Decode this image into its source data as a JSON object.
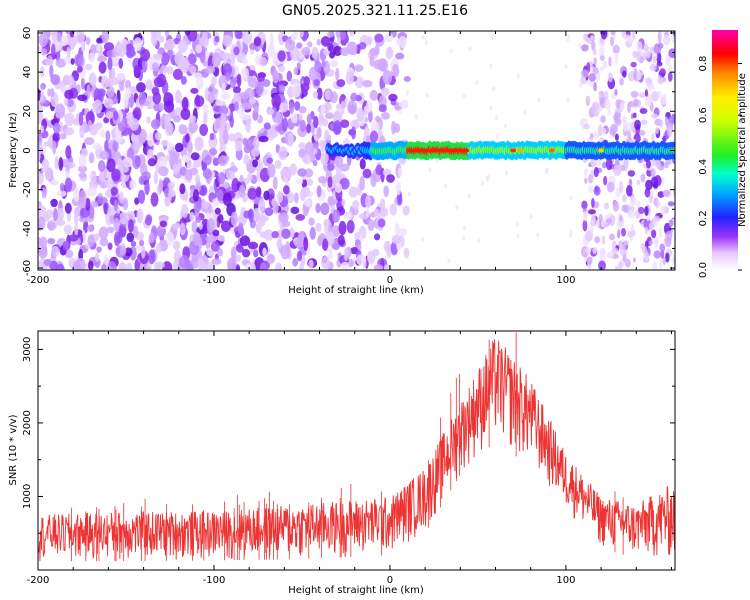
{
  "figure_title": "GN05.2025.321.11.25.E16",
  "chart_data": [
    {
      "type": "heatmap",
      "title": "GN05.2025.321.11.25.E16",
      "xlabel": "Height of straight line (km)",
      "ylabel": "Frequency (Hz)",
      "xlim": [
        -200,
        162
      ],
      "ylim": [
        -61,
        61
      ],
      "xticks": [
        -200,
        -100,
        0,
        100
      ],
      "yticks": [
        -60,
        -40,
        -20,
        0,
        20,
        40,
        60
      ],
      "features": {
        "noise_region_km": [
          -200,
          10
        ],
        "noise_region_right_km": [
          110,
          162
        ],
        "signal_band_hz": [
          -4,
          4
        ],
        "signal_start_km": -35,
        "peak_amplitude_km": [
          10,
          45
        ]
      },
      "colorbar": {
        "label": "Normalized spectral amplitude",
        "range": [
          0.0,
          0.93
        ],
        "ticks": [
          0.0,
          0.2,
          0.4,
          0.6,
          0.8
        ],
        "colormap": "rainbow"
      }
    },
    {
      "type": "line",
      "xlabel": "Height of straight line (km)",
      "ylabel": "SNR (10 * v/v)",
      "xlim": [
        -200,
        162
      ],
      "ylim": [
        0,
        3250
      ],
      "xticks": [
        -200,
        -100,
        0,
        100
      ],
      "yticks": [
        1000,
        2000,
        3000
      ],
      "series": [
        {
          "name": "SNR",
          "color": "#ee3333",
          "x": [
            -200,
            -150,
            -100,
            -50,
            0,
            20,
            40,
            60,
            80,
            100,
            120,
            140,
            162
          ],
          "y_low": [
            120,
            120,
            130,
            150,
            200,
            500,
            1300,
            1750,
            1400,
            800,
            300,
            150,
            100
          ],
          "y_high": [
            750,
            800,
            800,
            900,
            1000,
            1400,
            2300,
            3200,
            2600,
            1600,
            1000,
            900,
            1200
          ]
        }
      ]
    }
  ]
}
